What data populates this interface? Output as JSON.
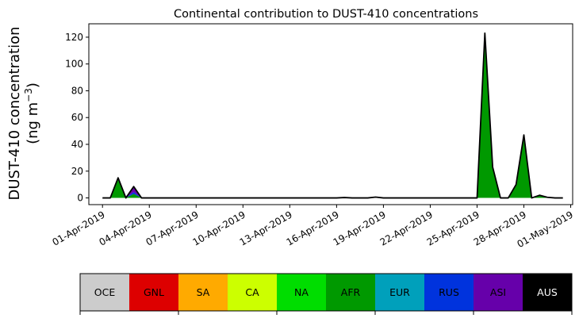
{
  "chart_data": {
    "type": "area",
    "title": "Continental contribution to DUST-410 concentrations",
    "xlabel": "",
    "ylabel_line1": "DUST-410 concentration",
    "ylabel_line2": "(ng m",
    "ylabel_exp": "−3",
    "ylabel_close": ")",
    "ylim": [
      -5,
      130
    ],
    "yticks": [
      0,
      20,
      40,
      60,
      80,
      100,
      120
    ],
    "xlim": [
      "2019-03-31T03:00",
      "2019-05-01T03:00"
    ],
    "xticks": [
      "01-Apr-2019",
      "04-Apr-2019",
      "07-Apr-2019",
      "10-Apr-2019",
      "13-Apr-2019",
      "16-Apr-2019",
      "19-Apr-2019",
      "22-Apr-2019",
      "25-Apr-2019",
      "28-Apr-2019",
      "01-May-2019"
    ],
    "grid": false,
    "x": [
      "2019-04-01T00:00",
      "2019-04-01T12:00",
      "2019-04-02T00:00",
      "2019-04-02T12:00",
      "2019-04-03T00:00",
      "2019-04-03T12:00",
      "2019-04-04T00:00",
      "2019-04-05T00:00",
      "2019-04-06T00:00",
      "2019-04-07T00:00",
      "2019-04-08T00:00",
      "2019-04-09T00:00",
      "2019-04-10T00:00",
      "2019-04-11T00:00",
      "2019-04-12T00:00",
      "2019-04-13T00:00",
      "2019-04-14T00:00",
      "2019-04-15T00:00",
      "2019-04-16T00:00",
      "2019-04-16T12:00",
      "2019-04-17T00:00",
      "2019-04-18T00:00",
      "2019-04-18T12:00",
      "2019-04-19T00:00",
      "2019-04-20T00:00",
      "2019-04-21T00:00",
      "2019-04-22T00:00",
      "2019-04-23T00:00",
      "2019-04-24T00:00",
      "2019-04-24T12:00",
      "2019-04-25T00:00",
      "2019-04-25T12:00",
      "2019-04-26T00:00",
      "2019-04-26T12:00",
      "2019-04-27T00:00",
      "2019-04-27T12:00",
      "2019-04-28T00:00",
      "2019-04-28T12:00",
      "2019-04-29T00:00",
      "2019-04-29T12:00",
      "2019-04-30T00:00",
      "2019-04-30T12:00"
    ],
    "series": [
      {
        "name": "OCE",
        "color": "#cccccc",
        "values": [
          0,
          0,
          0,
          0,
          0,
          0,
          0,
          0,
          0,
          0,
          0,
          0,
          0,
          0,
          0,
          0,
          0,
          0,
          0,
          0,
          0,
          0,
          0,
          0,
          0,
          0,
          0,
          0,
          0,
          0,
          0,
          0,
          0,
          0,
          0,
          0,
          0,
          0,
          0,
          0,
          0,
          0
        ]
      },
      {
        "name": "GNL",
        "color": "#dd0000",
        "values": [
          0,
          0,
          0,
          0,
          0,
          0,
          0,
          0,
          0,
          0,
          0,
          0,
          0,
          0,
          0,
          0,
          0,
          0,
          0,
          0,
          0,
          0,
          0,
          0,
          0,
          0,
          0,
          0,
          0,
          0,
          0,
          0,
          0,
          0,
          0,
          0,
          0,
          0,
          0,
          0,
          0,
          0
        ]
      },
      {
        "name": "SA",
        "color": "#ffaa00",
        "values": [
          0,
          0,
          0,
          0,
          0,
          0,
          0,
          0,
          0,
          0,
          0,
          0,
          0,
          0,
          0,
          0,
          0,
          0,
          0,
          0,
          0,
          0,
          0,
          0,
          0,
          0,
          0,
          0,
          0,
          0,
          0,
          0,
          0,
          0,
          0,
          0,
          0,
          0,
          0,
          0,
          0,
          0
        ]
      },
      {
        "name": "CA",
        "color": "#ccff00",
        "values": [
          0,
          0,
          0,
          0,
          0,
          0,
          0,
          0,
          0,
          0,
          0,
          0,
          0,
          0,
          0,
          0,
          0,
          0,
          0,
          0,
          0,
          0,
          0,
          0,
          0,
          0,
          0,
          0,
          0,
          0,
          0,
          0,
          0,
          0,
          0,
          0,
          0,
          0,
          0,
          0,
          0,
          0
        ]
      },
      {
        "name": "NA",
        "color": "#00dd00",
        "values": [
          0,
          0,
          0,
          0,
          0,
          0,
          0,
          0,
          0,
          0,
          0,
          0,
          0,
          0,
          0,
          0,
          0,
          0,
          0,
          0,
          0,
          0,
          0,
          0,
          0,
          0,
          0,
          0,
          0,
          0,
          0,
          0,
          0,
          0,
          0,
          0,
          0,
          0,
          0,
          0,
          0,
          0
        ]
      },
      {
        "name": "AFR",
        "color": "#009900",
        "values": [
          0,
          0,
          15,
          0,
          3,
          0,
          0,
          0,
          0,
          0,
          0,
          0,
          0,
          0,
          0,
          0,
          0,
          0,
          0,
          0,
          0,
          0,
          0.6,
          0,
          0,
          0,
          0,
          0,
          0,
          0,
          0,
          123,
          23,
          0,
          0,
          10,
          47,
          0,
          2,
          0.5,
          0,
          0
        ]
      },
      {
        "name": "EUR",
        "color": "#00a0bb",
        "values": [
          0,
          0,
          0,
          0,
          0,
          0,
          0,
          0,
          0,
          0,
          0,
          0,
          0,
          0,
          0,
          0,
          0,
          0,
          0,
          0,
          0,
          0,
          0,
          0,
          0,
          0,
          0,
          0,
          0,
          0,
          0,
          0,
          0,
          0,
          0,
          0,
          0,
          0,
          0,
          0,
          0,
          0
        ]
      },
      {
        "name": "RUS",
        "color": "#0033dd",
        "values": [
          0,
          0,
          0,
          0,
          1.5,
          0,
          0,
          0,
          0,
          0,
          0,
          0,
          0,
          0,
          0,
          0,
          0,
          0,
          0,
          0,
          0,
          0,
          0,
          0,
          0,
          0,
          0,
          0,
          0,
          0,
          0,
          0,
          0,
          0,
          0,
          0,
          0,
          0,
          0,
          0,
          0,
          0
        ]
      },
      {
        "name": "ASI",
        "color": "#6600aa",
        "values": [
          0,
          0,
          0,
          0,
          4,
          0,
          0,
          0,
          0,
          0,
          0,
          0,
          0,
          0,
          0,
          0,
          0,
          0,
          0,
          0.3,
          0,
          0,
          0,
          0,
          0,
          0,
          0,
          0,
          0,
          0,
          0,
          0,
          0,
          0,
          0,
          0,
          0,
          0,
          0,
          0,
          0,
          0
        ]
      },
      {
        "name": "AUS",
        "color": "#000000",
        "values": [
          0,
          0,
          0,
          0,
          0,
          0,
          0,
          0,
          0,
          0,
          0,
          0,
          0,
          0,
          0,
          0,
          0,
          0,
          0,
          0,
          0,
          0,
          0,
          0,
          0,
          0,
          0,
          0,
          0,
          0,
          0,
          0,
          0,
          0,
          0,
          0,
          0,
          0,
          0,
          0,
          0,
          0
        ]
      }
    ],
    "legend": {
      "placement": "bottom",
      "entries": [
        {
          "label": "OCE",
          "color": "#cccccc",
          "text_color": "#000000"
        },
        {
          "label": "GNL",
          "color": "#dd0000",
          "text_color": "#000000"
        },
        {
          "label": "SA",
          "color": "#ffaa00",
          "text_color": "#000000"
        },
        {
          "label": "CA",
          "color": "#ccff00",
          "text_color": "#000000"
        },
        {
          "label": "NA",
          "color": "#00dd00",
          "text_color": "#000000"
        },
        {
          "label": "AFR",
          "color": "#009900",
          "text_color": "#000000"
        },
        {
          "label": "EUR",
          "color": "#00a0bb",
          "text_color": "#000000"
        },
        {
          "label": "RUS",
          "color": "#0033dd",
          "text_color": "#000000"
        },
        {
          "label": "ASI",
          "color": "#6600aa",
          "text_color": "#000000"
        },
        {
          "label": "AUS",
          "color": "#000000",
          "text_color": "#ffffff"
        }
      ]
    }
  }
}
